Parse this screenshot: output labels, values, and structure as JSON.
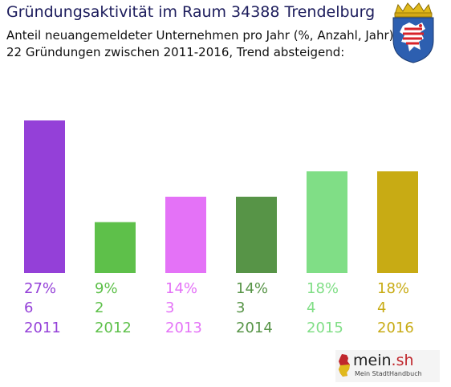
{
  "header": {
    "title": "Gründungsaktivität im Raum 34388 Trendelburg",
    "subtitle_line1": "Anteil neuangemeldeter Unternehmen pro Jahr (%, Anzahl, Jahr)",
    "subtitle_line2": "22 Gründungen zwischen 2011-2016, Trend absteigend:"
  },
  "crest": {
    "icon": "hessen-coat-of-arms-icon"
  },
  "logo": {
    "name_main": "mein",
    "name_domain": ".sh",
    "tagline": "Mein StadtHandbuch"
  },
  "chart_data": {
    "type": "bar",
    "categories": [
      "2011",
      "2012",
      "2013",
      "2014",
      "2015",
      "2016"
    ],
    "percent_labels": [
      "27%",
      "9%",
      "14%",
      "14%",
      "18%",
      "18%"
    ],
    "values": [
      6,
      2,
      3,
      3,
      4,
      4
    ],
    "colors": [
      "#9440d8",
      "#5ec04a",
      "#e472f7",
      "#579447",
      "#80de86",
      "#c8ab14"
    ],
    "grid": false,
    "legend": "none"
  }
}
